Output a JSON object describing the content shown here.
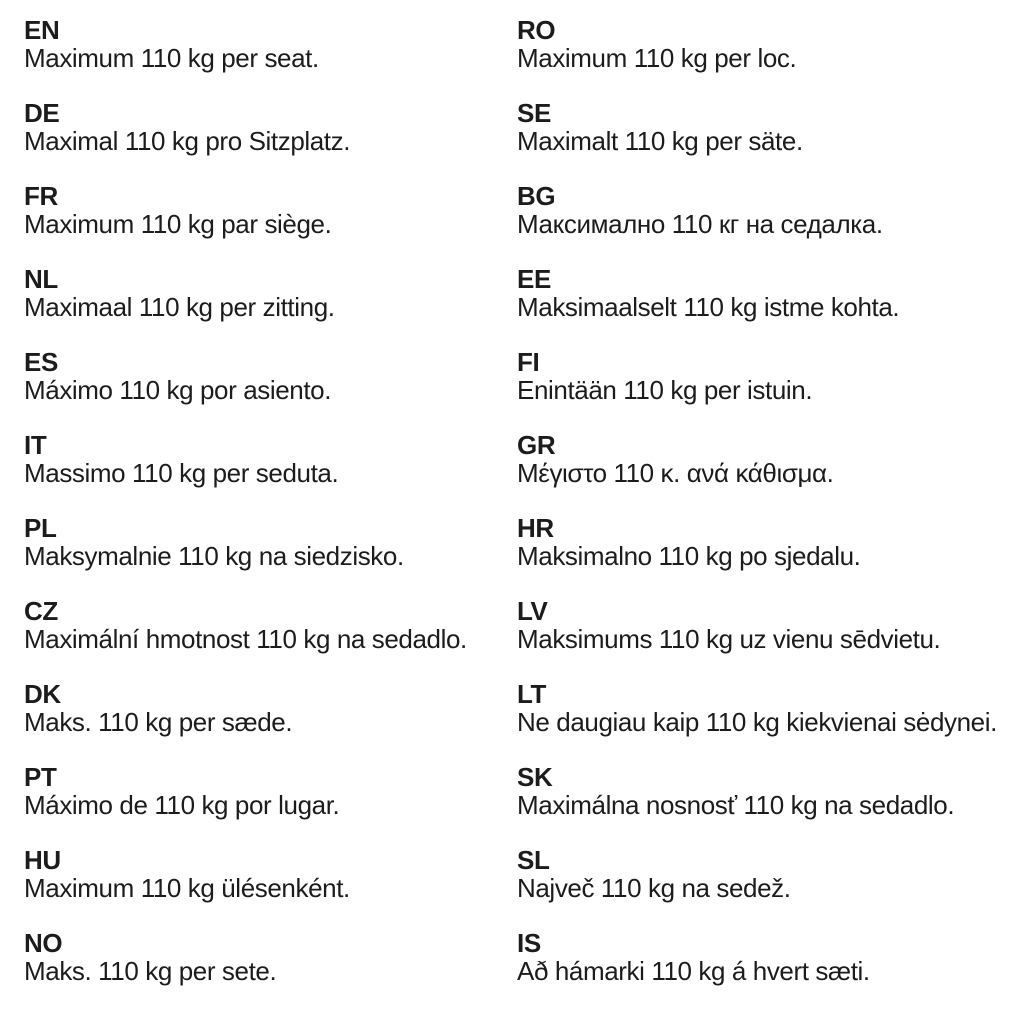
{
  "page": {
    "background_color": "#ffffff",
    "text_color": "#1c1c1c",
    "description": "Multilingual product label: maximum load 110 kg per seat"
  },
  "entries": {
    "left": [
      {
        "code": "EN",
        "text": "Maximum 110 kg per seat."
      },
      {
        "code": "DE",
        "text": "Maximal 110 kg pro Sitzplatz."
      },
      {
        "code": "FR",
        "text": "Maximum 110 kg par siège."
      },
      {
        "code": "NL",
        "text": "Maximaal 110 kg per zitting."
      },
      {
        "code": "ES",
        "text": "Máximo 110 kg por asiento."
      },
      {
        "code": "IT",
        "text": "Massimo 110 kg per seduta."
      },
      {
        "code": "PL",
        "text": "Maksymalnie 110 kg na siedzisko."
      },
      {
        "code": "CZ",
        "text": "Maximální hmotnost 110 kg na sedadlo."
      },
      {
        "code": "DK",
        "text": "Maks. 110 kg per sæde."
      },
      {
        "code": "PT",
        "text": "Máximo de 110 kg por lugar."
      },
      {
        "code": "HU",
        "text": "Maximum 110 kg ülésenként."
      },
      {
        "code": "NO",
        "text": "Maks. 110 kg per sete."
      }
    ],
    "right": [
      {
        "code": "RO",
        "text": "Maximum 110 kg per loc."
      },
      {
        "code": "SE",
        "text": "Maximalt 110 kg per säte."
      },
      {
        "code": "BG",
        "text": "Максимално 110 кг на седалка."
      },
      {
        "code": "EE",
        "text": "Maksimaalselt 110 kg istme kohta."
      },
      {
        "code": "FI",
        "text": "Enintään 110 kg per istuin."
      },
      {
        "code": "GR",
        "text": "Μέγιστο 110 κ. ανά κάθισμα."
      },
      {
        "code": "HR",
        "text": "Maksimalno 110 kg po sjedalu."
      },
      {
        "code": "LV",
        "text": "Maksimums 110 kg uz vienu sēdvietu."
      },
      {
        "code": "LT",
        "text": "Ne daugiau kaip 110 kg kiekvienai sėdynei."
      },
      {
        "code": "SK",
        "text": "Maximálna nosnosť 110 kg na sedadlo."
      },
      {
        "code": "SL",
        "text": "Največ 110 kg na sedež."
      },
      {
        "code": "IS",
        "text": "Að hámarki 110 kg á hvert sæti."
      }
    ]
  }
}
